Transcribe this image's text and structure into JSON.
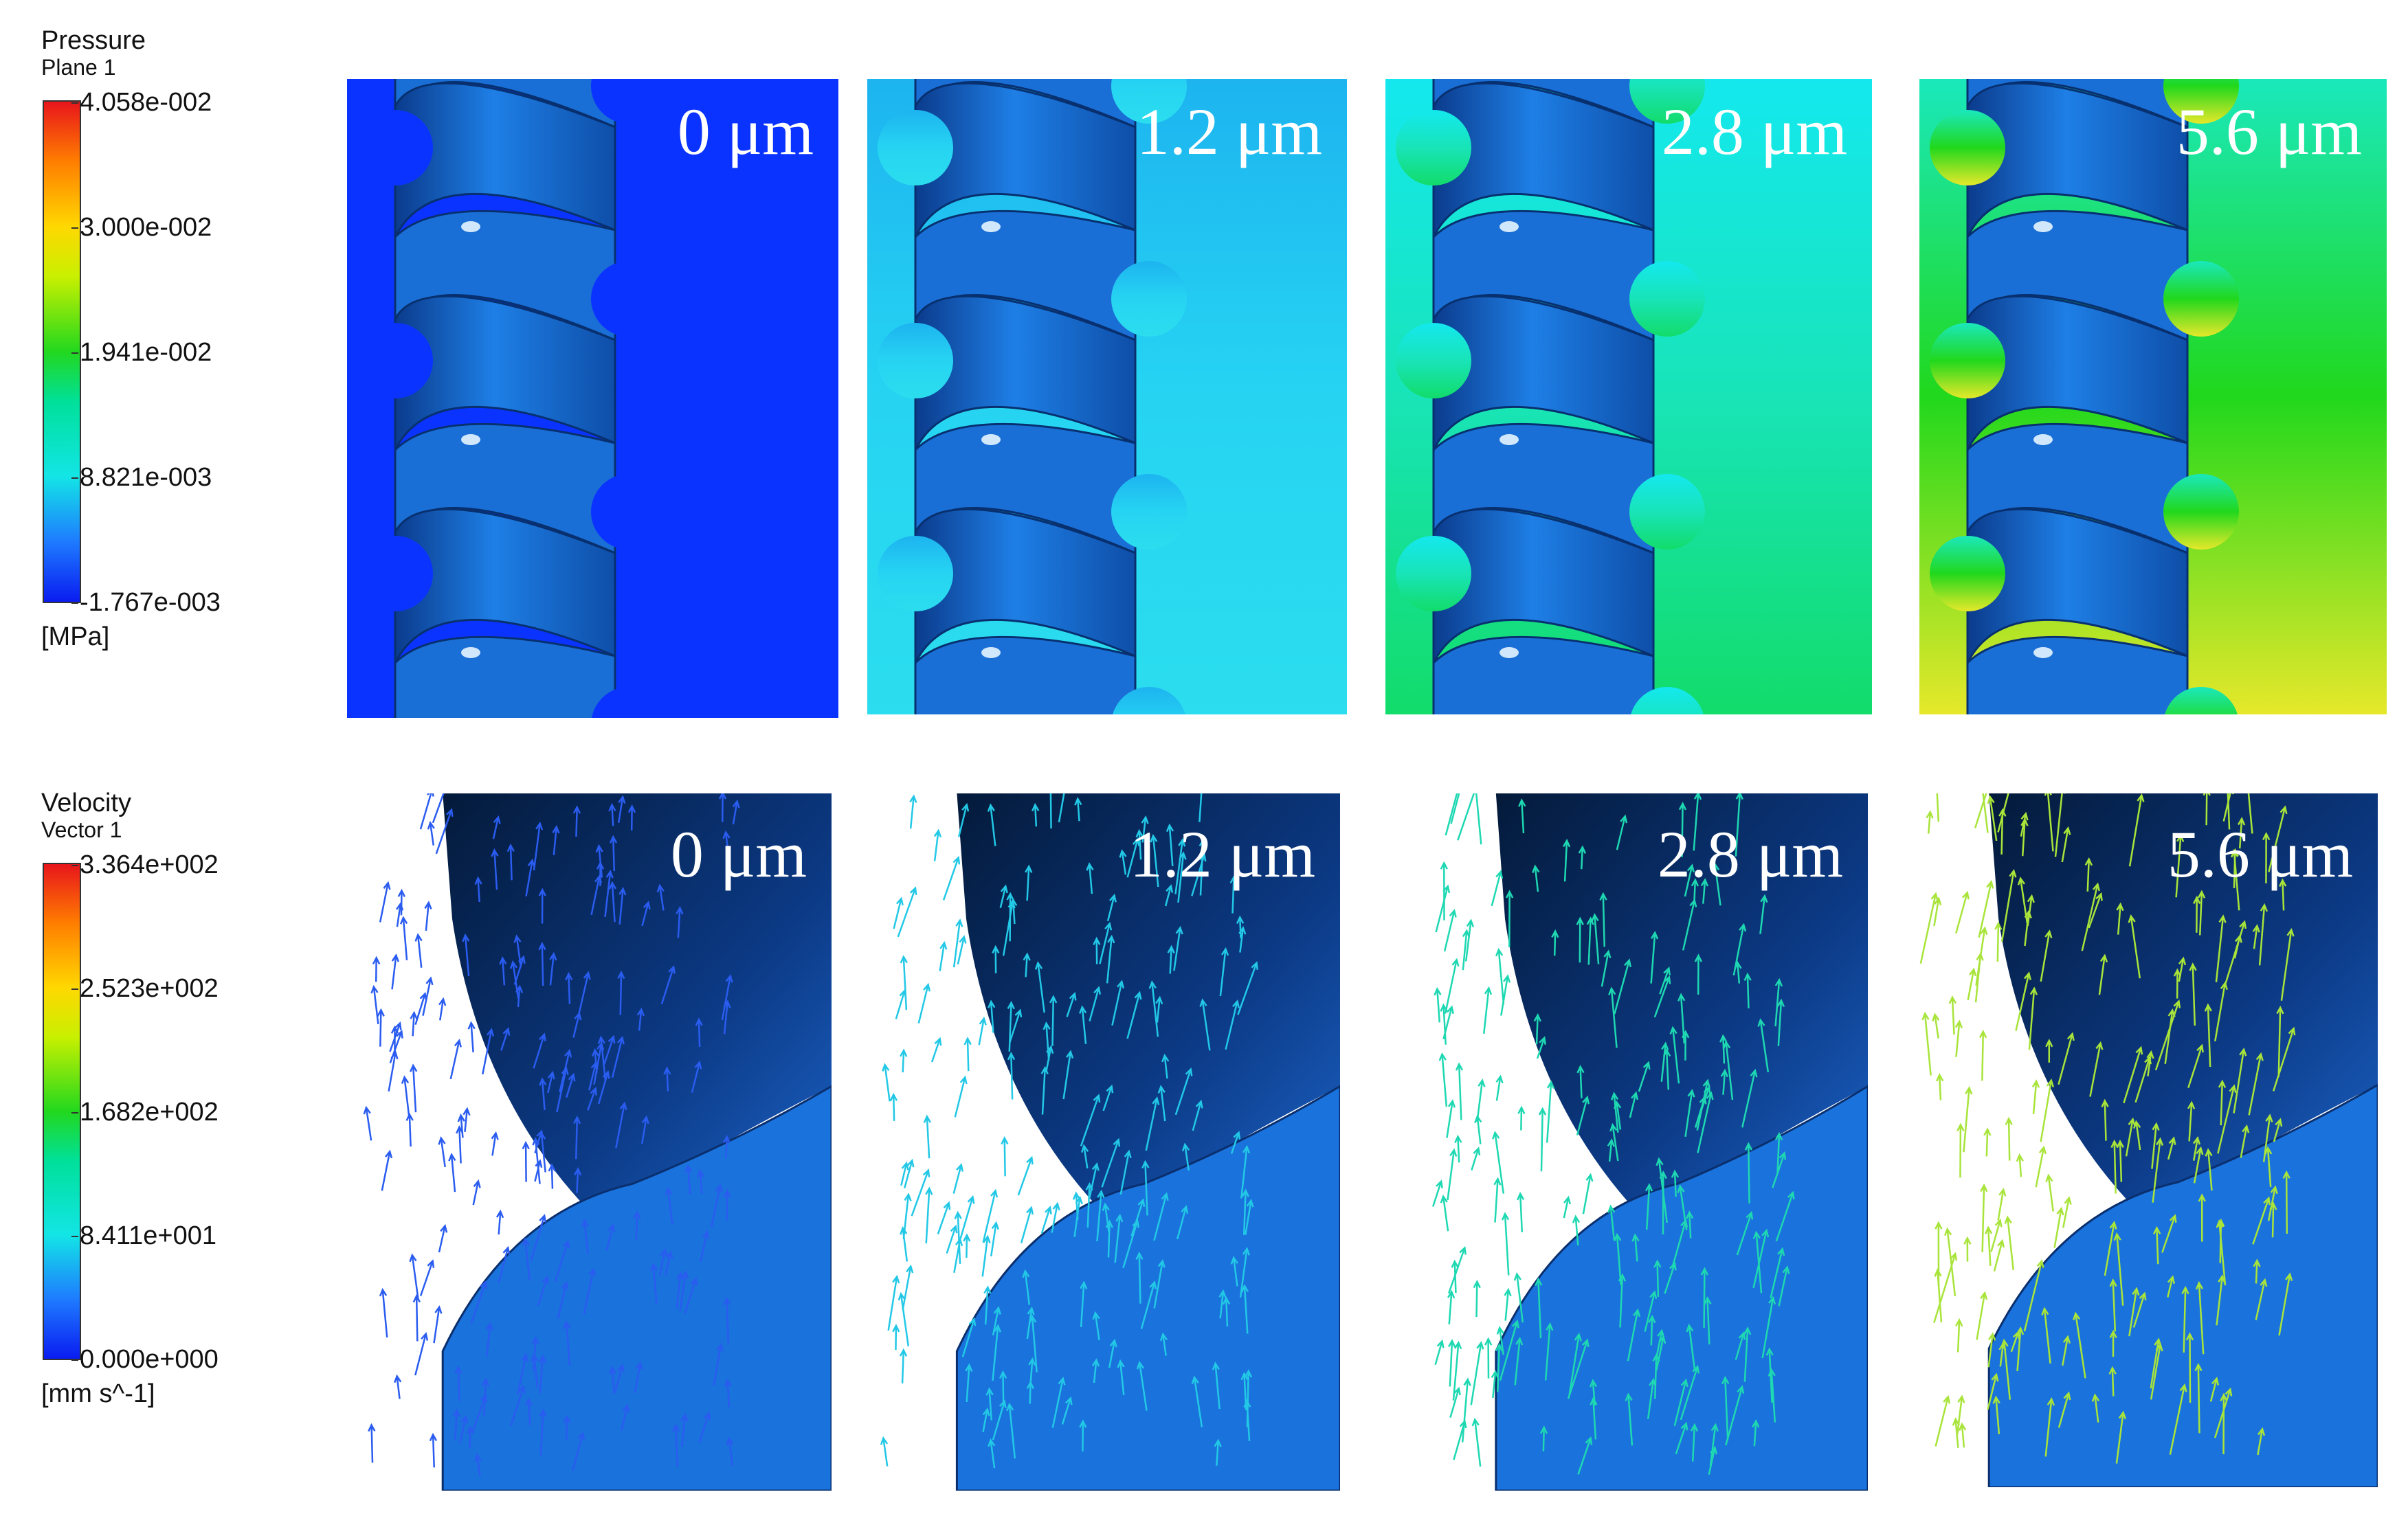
{
  "pressure_legend": {
    "title": "Pressure",
    "subtitle": "Plane 1",
    "ticks": [
      "4.058e-002",
      "3.000e-002",
      "1.941e-002",
      "8.821e-003",
      "-1.767e-003"
    ],
    "unit": "[MPa]"
  },
  "velocity_legend": {
    "title": "Velocity",
    "subtitle": "Vector 1",
    "ticks": [
      "3.364e+002",
      "2.523e+002",
      "1.682e+002",
      "8.411e+001",
      "0.000e+000"
    ],
    "unit": "[mm s^-1]"
  },
  "pressure_panels": [
    {
      "label": "0 μm",
      "colors": {
        "top": "#0a33ff",
        "mid": "#0a33ff",
        "bottom": "#0a33ff"
      }
    },
    {
      "label": "1.2 μm",
      "colors": {
        "top": "#1db4f0",
        "mid": "#26d4f2",
        "bottom": "#2bddee"
      }
    },
    {
      "label": "2.8 μm",
      "colors": {
        "top": "#14e8ee",
        "mid": "#18e4b8",
        "bottom": "#12dc6a"
      }
    },
    {
      "label": "5.6 μm",
      "colors": {
        "top": "#1ae8bc",
        "mid": "#21d81c",
        "bottom": "#e6e82a"
      }
    }
  ],
  "velocity_panels": [
    {
      "label": "0 μm",
      "arrow_color": "#2a5cf0"
    },
    {
      "label": "1.2 μm",
      "arrow_color": "#22c8e6"
    },
    {
      "label": "2.8 μm",
      "arrow_color": "#1ed8b2"
    },
    {
      "label": "5.6 μm",
      "arrow_color": "#a8e43a"
    }
  ]
}
